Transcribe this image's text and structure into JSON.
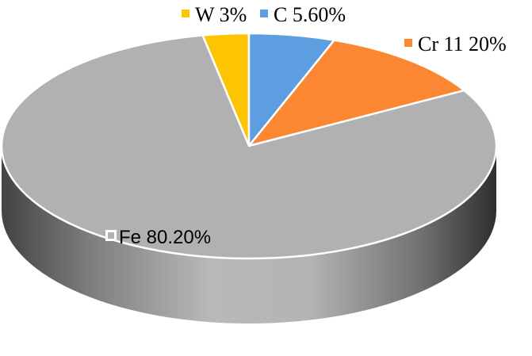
{
  "chart_data": {
    "type": "pie",
    "title": "",
    "categories": [
      "Fe",
      "W",
      "C",
      "Cr"
    ],
    "values": [
      80.2,
      3,
      5.6,
      11.2
    ],
    "labels": [
      "Fe 80.20%",
      "W 3%",
      "C 5.60%",
      "Cr 11 20%"
    ],
    "colors": [
      "#b1b1b1",
      "#fdc401",
      "#5c9ee0",
      "#fb8732"
    ],
    "legend": "inline",
    "style": "3d"
  }
}
